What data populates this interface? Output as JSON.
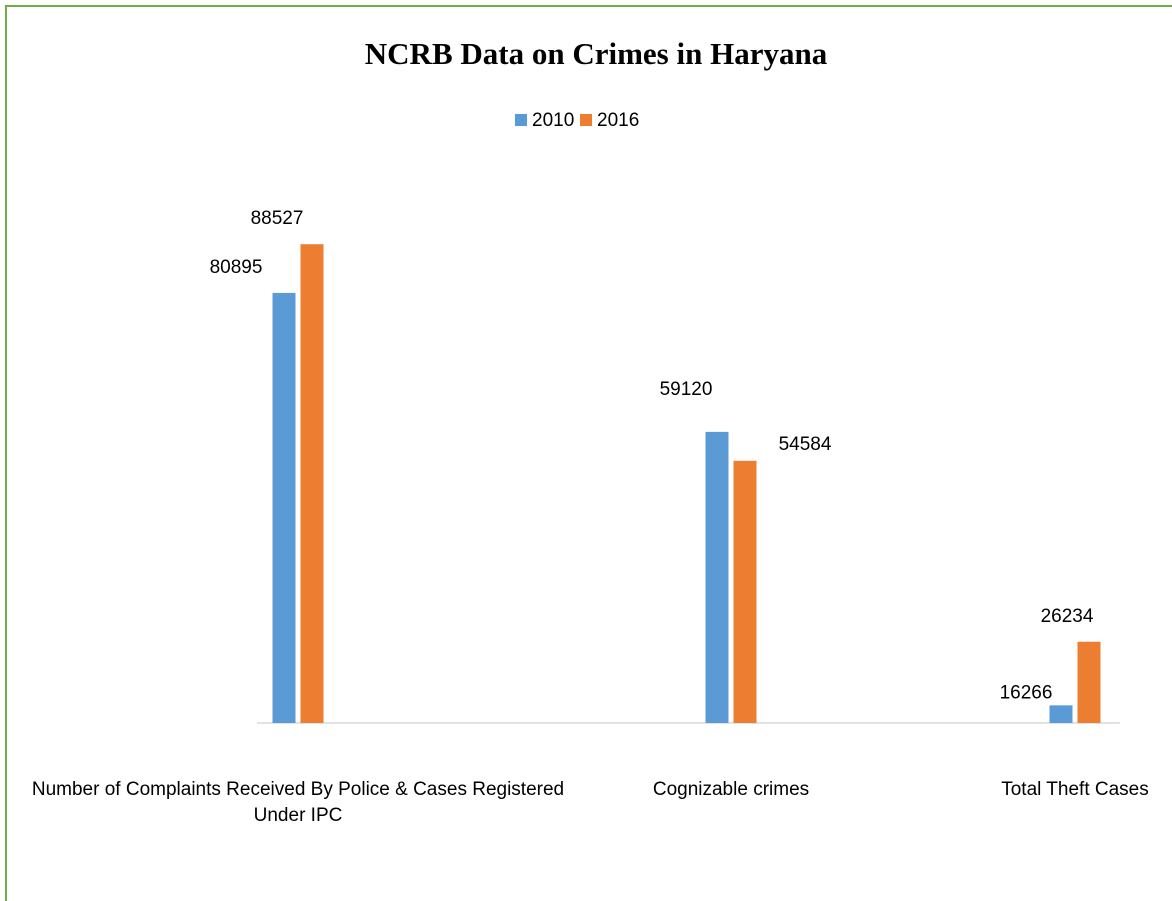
{
  "chart_data": {
    "type": "bar",
    "title": "NCRB Data on Crimes in Haryana",
    "categories": [
      "Number of Complaints Received By Police & Cases Registered Under IPC",
      "Cognizable crimes",
      "Total Theft Cases"
    ],
    "series": [
      {
        "name": "2010",
        "color": "#5b9bd5",
        "values": [
          80895,
          59120,
          16266
        ]
      },
      {
        "name": "2016",
        "color": "#ed7d31",
        "values": [
          88527,
          54584,
          26234
        ]
      }
    ],
    "ylim": [
      13500,
      100000
    ],
    "legend": "top"
  }
}
